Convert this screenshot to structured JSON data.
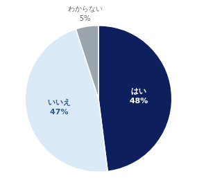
{
  "chart_data": {
    "type": "pie",
    "categories": [
      "はい",
      "いいえ",
      "わからない"
    ],
    "values": [
      48,
      47,
      5
    ],
    "value_labels": [
      "48%",
      "47%",
      "5%"
    ],
    "colors": [
      "#0d1f5c",
      "#daeaf6",
      "#9aa5ad"
    ],
    "data_labels": true
  }
}
